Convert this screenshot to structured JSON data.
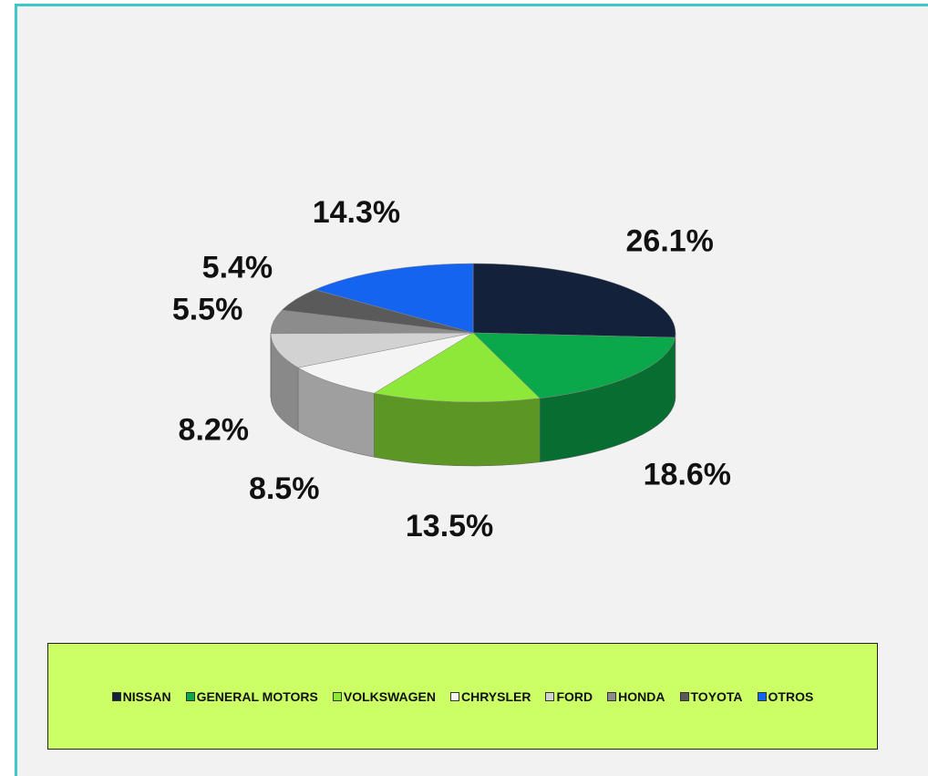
{
  "chart_data": {
    "type": "pie3d",
    "categories": [
      "NISSAN",
      "GENERAL MOTORS",
      "VOLKSWAGEN",
      "CHRYSLER",
      "FORD",
      "HONDA",
      "TOYOTA",
      "OTROS"
    ],
    "values": [
      26.1,
      18.6,
      13.5,
      8.5,
      8.2,
      5.5,
      5.4,
      14.3
    ],
    "value_labels": [
      "26.1%",
      "18.6%",
      "13.5%",
      "8.5%",
      "8.2%",
      "5.5%",
      "5.4%",
      "14.3%"
    ],
    "colors": [
      "#13213b",
      "#0aa84a",
      "#8ee83a",
      "#f4f4f4",
      "#d2d2d2",
      "#8c8c8c",
      "#5a5a5a",
      "#1464f0"
    ],
    "legend": "bottom"
  }
}
